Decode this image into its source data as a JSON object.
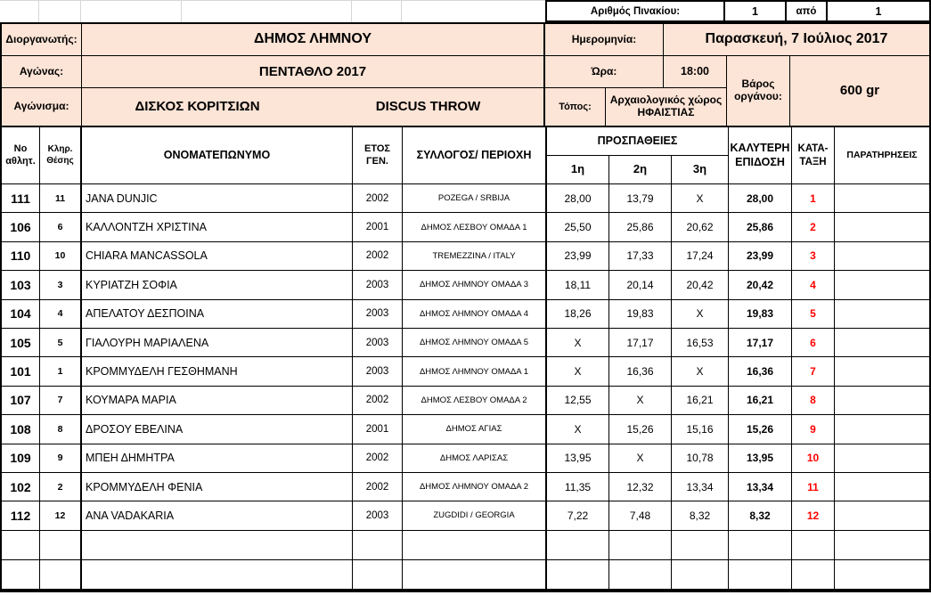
{
  "colors": {
    "header_fill": "#fce4d6",
    "rank_red": "#ff0000",
    "border": "#000000",
    "gridline_gray": "#d6d6d6"
  },
  "board": {
    "label": "Αριθμός Πινακίου:",
    "number": "1",
    "of": "από",
    "total": "1"
  },
  "header": {
    "organizer_label": "Διοργανωτής:",
    "organizer": "ΔΗΜΟΣ ΛΗΜΝΟΥ",
    "date_label": "Ημερομηνία:",
    "date": "Παρασκευή, 7 Ιούλιος 2017",
    "competition_label": "Αγώνας:",
    "competition": "ΠΕΝΤΑΘΛΟ 2017",
    "time_label": "Ώρα:",
    "time": "18:00",
    "weight_label": "Βάρος οργάνου:",
    "weight": "600 gr",
    "event_label": "Αγώνισμα:",
    "event_gr": "ΔΙΣΚΟΣ ΚΟΡΙΤΣΙΩΝ",
    "event_en": "DISCUS THROW",
    "venue_label": "Τόπος:",
    "venue": "Αρχαιολογικός χώρος ΗΦΑΙΣΤΙΑΣ"
  },
  "table": {
    "headers": {
      "no": "Νο\nαθλητ.",
      "draw": "Κληρ.\nΘέσης",
      "name": "ΟΝΟΜΑΤΕΠΩΝΥΜΟ",
      "year": "ΕΤΟΣ\nΓΕΝ.",
      "club": "ΣΥΛΛΟΓΟΣ/ ΠΕΡΙΟΧΗ",
      "attempts": "ΠΡΟΣΠΑΘΕΙΕΣ",
      "attempt_cols": [
        "1η",
        "2η",
        "3η"
      ],
      "best": "ΚΑΛΥΤΕΡΗ\nΕΠΙΔΟΣΗ",
      "rank": "ΚΑΤΑ-\nΤΑΞΗ",
      "notes": "ΠΑΡΑΤΗΡΗΣΕΙΣ"
    },
    "athletes": [
      {
        "no": "111",
        "draw": "11",
        "name": "JANA DUNJIC",
        "year": "2002",
        "club": "POZEGA / SRBIJA",
        "attempts": [
          "28,00",
          "13,79",
          "X"
        ],
        "best": "28,00",
        "rank": "1"
      },
      {
        "no": "106",
        "draw": "6",
        "name": "ΚΑΛΛΟΝΤΖΗ ΧΡΙΣΤΙΝΑ",
        "year": "2001",
        "club": "ΔΗΜΟΣ ΛΕΣΒΟΥ ΟΜΑΔΑ 1",
        "attempts": [
          "25,50",
          "25,86",
          "20,62"
        ],
        "best": "25,86",
        "rank": "2"
      },
      {
        "no": "110",
        "draw": "10",
        "name": "CHIARA MANCASSOLA",
        "year": "2002",
        "club": "TREMEZZINA / ITALY",
        "attempts": [
          "23,99",
          "17,33",
          "17,24"
        ],
        "best": "23,99",
        "rank": "3"
      },
      {
        "no": "103",
        "draw": "3",
        "name": "ΚΥΡΙΑΤΖΗ ΣΟΦΙΑ",
        "year": "2003",
        "club": "ΔΗΜΟΣ ΛΗΜΝΟΥ ΟΜΑΔΑ 3",
        "attempts": [
          "18,11",
          "20,14",
          "20,42"
        ],
        "best": "20,42",
        "rank": "4"
      },
      {
        "no": "104",
        "draw": "4",
        "name": "ΑΠΕΛΑΤΟΥ ΔΕΣΠΟΙΝΑ",
        "year": "2003",
        "club": "ΔΗΜΟΣ ΛΗΜΝΟΥ ΟΜΑΔΑ 4",
        "attempts": [
          "18,26",
          "19,83",
          "X"
        ],
        "best": "19,83",
        "rank": "5"
      },
      {
        "no": "105",
        "draw": "5",
        "name": "ΓΙΑΛΟΥΡΗ ΜΑΡΙΑΛΕΝΑ",
        "year": "2003",
        "club": "ΔΗΜΟΣ ΛΗΜΝΟΥ ΟΜΑΔΑ 5",
        "attempts": [
          "X",
          "17,17",
          "16,53"
        ],
        "best": "17,17",
        "rank": "6"
      },
      {
        "no": "101",
        "draw": "1",
        "name": "ΚΡΟΜΜΥΔΕΛΗ ΓΕΣΘΗΜΑΝΗ",
        "year": "2003",
        "club": "ΔΗΜΟΣ ΛΗΜΝΟΥ ΟΜΑΔΑ 1",
        "attempts": [
          "X",
          "16,36",
          "X"
        ],
        "best": "16,36",
        "rank": "7"
      },
      {
        "no": "107",
        "draw": "7",
        "name": "ΚΟΥΜΑΡΑ ΜΑΡΙΑ",
        "year": "2002",
        "club": "ΔΗΜΟΣ ΛΕΣΒΟΥ ΟΜΑΔΑ 2",
        "attempts": [
          "12,55",
          "X",
          "16,21"
        ],
        "best": "16,21",
        "rank": "8"
      },
      {
        "no": "108",
        "draw": "8",
        "name": "ΔΡΟΣΟΥ ΕΒΕΛΙΝΑ",
        "year": "2001",
        "club": "ΔΗΜΟΣ ΑΓΙΑΣ",
        "attempts": [
          "X",
          "15,26",
          "15,16"
        ],
        "best": "15,26",
        "rank": "9"
      },
      {
        "no": "109",
        "draw": "9",
        "name": "ΜΠΕΗ ΔΗΜΗΤΡΑ",
        "year": "2002",
        "club": "ΔΗΜΟΣ ΛΑΡΙΣΑΣ",
        "attempts": [
          "13,95",
          "X",
          "10,78"
        ],
        "best": "13,95",
        "rank": "10"
      },
      {
        "no": "102",
        "draw": "2",
        "name": "ΚΡΟΜΜΥΔΕΛΗ ΦΕΝΙΑ",
        "year": "2002",
        "club": "ΔΗΜΟΣ ΛΗΜΝΟΥ ΟΜΑΔΑ 2",
        "attempts": [
          "11,35",
          "12,32",
          "13,34"
        ],
        "best": "13,34",
        "rank": "11"
      },
      {
        "no": "112",
        "draw": "12",
        "name": "ANA VADAKARIA",
        "year": "2003",
        "club": "ZUGDIDI / GEORGIA",
        "attempts": [
          "7,22",
          "7,48",
          "8,32"
        ],
        "best": "8,32",
        "rank": "12"
      }
    ],
    "empty_rows": 2
  }
}
